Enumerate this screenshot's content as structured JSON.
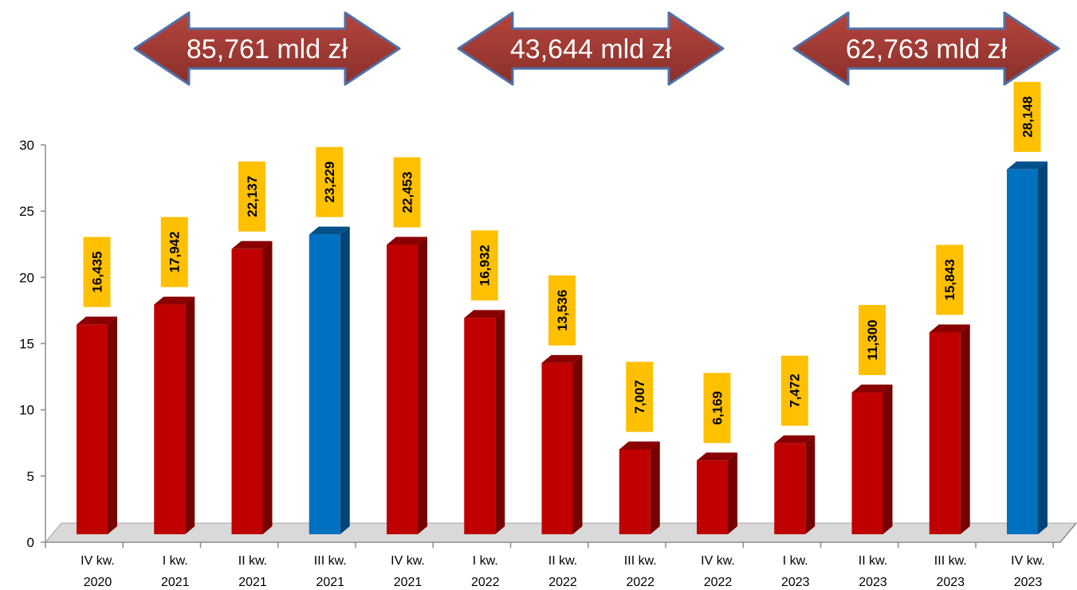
{
  "colors": {
    "bar_red": "#c00000",
    "bar_blue": "#0070c0",
    "label_bg": "#ffc000",
    "arrow_fill": "#9b3b34",
    "arrow_stroke": "#4f6fa8"
  },
  "arrows": [
    {
      "label": "85,761 mld zł"
    },
    {
      "label": "43,644 mld zł"
    },
    {
      "label": "62,763 mld zł"
    }
  ],
  "chart_data": {
    "type": "bar",
    "categories": [
      [
        "IV kw.",
        "2020"
      ],
      [
        "I kw.",
        "2021"
      ],
      [
        "II kw.",
        "2021"
      ],
      [
        "III kw.",
        "2021"
      ],
      [
        "IV kw.",
        "2021"
      ],
      [
        "I kw.",
        "2022"
      ],
      [
        "II kw.",
        "2022"
      ],
      [
        "III kw.",
        "2022"
      ],
      [
        "IV kw.",
        "2022"
      ],
      [
        "I kw.",
        "2023"
      ],
      [
        "II kw.",
        "2023"
      ],
      [
        "III kw.",
        "2023"
      ],
      [
        "IV kw.",
        "2023"
      ]
    ],
    "values": [
      16.435,
      17.942,
      22.137,
      23.229,
      22.453,
      16.932,
      13.536,
      7.007,
      6.169,
      7.472,
      11.3,
      15.843,
      28.148
    ],
    "value_labels": [
      "16,435",
      "17,942",
      "22,137",
      "23,229",
      "22,453",
      "16,932",
      "13,536",
      "7,007",
      "6,169",
      "7,472",
      "11,300",
      "15,843",
      "28,148"
    ],
    "highlight": [
      false,
      false,
      false,
      true,
      false,
      false,
      false,
      false,
      false,
      false,
      false,
      false,
      true
    ],
    "yticks": [
      "0",
      "5",
      "10",
      "15",
      "20",
      "25",
      "30"
    ],
    "ylim": [
      0,
      30
    ],
    "grid": false,
    "legend": "none"
  }
}
